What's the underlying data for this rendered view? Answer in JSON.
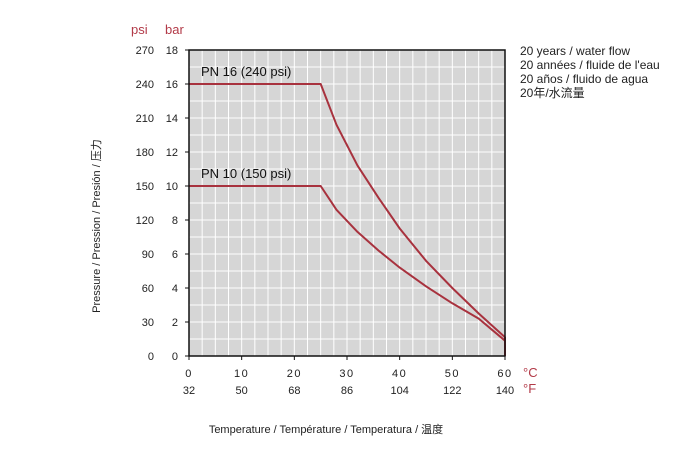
{
  "chart_data": {
    "type": "line",
    "x_unit_label": "°C",
    "x2_unit_label": "°F",
    "y_unit_label": "bar",
    "y2_unit_label": "psi",
    "x_ticks": [
      0,
      10,
      20,
      30,
      40,
      50,
      60
    ],
    "x_ticks_fahrenheit": [
      32,
      50,
      68,
      86,
      104,
      122,
      140
    ],
    "y_ticks": [
      0,
      2,
      4,
      6,
      8,
      10,
      12,
      14,
      16,
      18
    ],
    "y_ticks_psi": [
      0,
      30,
      60,
      90,
      120,
      150,
      180,
      210,
      240,
      270
    ],
    "xlim": [
      0,
      60
    ],
    "ylim": [
      0,
      18
    ],
    "grid": true,
    "series": [
      {
        "name": "PN 16 (240 psi)",
        "points": [
          [
            0,
            16
          ],
          [
            25,
            16
          ],
          [
            28,
            13.6
          ],
          [
            32,
            11.2
          ],
          [
            36,
            9.3
          ],
          [
            40,
            7.5
          ],
          [
            45,
            5.6
          ],
          [
            50,
            4.0
          ],
          [
            55,
            2.5
          ],
          [
            60,
            1.1
          ],
          [
            60,
            0
          ]
        ]
      },
      {
        "name": "PN 10 (150 psi)",
        "points": [
          [
            0,
            10
          ],
          [
            25,
            10
          ],
          [
            28,
            8.6
          ],
          [
            32,
            7.3
          ],
          [
            36,
            6.2
          ],
          [
            40,
            5.2
          ],
          [
            45,
            4.1
          ],
          [
            50,
            3.1
          ],
          [
            55,
            2.2
          ],
          [
            60,
            0.9
          ],
          [
            60,
            0
          ]
        ]
      }
    ],
    "legend_lines": [
      "20 years / water flow",
      "20 années / fluide de l'eau",
      "20 años / fluido de agua",
      "20年/水流量"
    ],
    "xlabel": "Temperature / Température / Temperatura / 温度",
    "ylabel": "Pressure / Pression / Presión / 压力",
    "colors": {
      "series": "#a8323e",
      "unit_label": "#b23a48",
      "plot_bg": "#d6d6d6",
      "grid": "#ffffff",
      "axis": "#111111"
    }
  }
}
